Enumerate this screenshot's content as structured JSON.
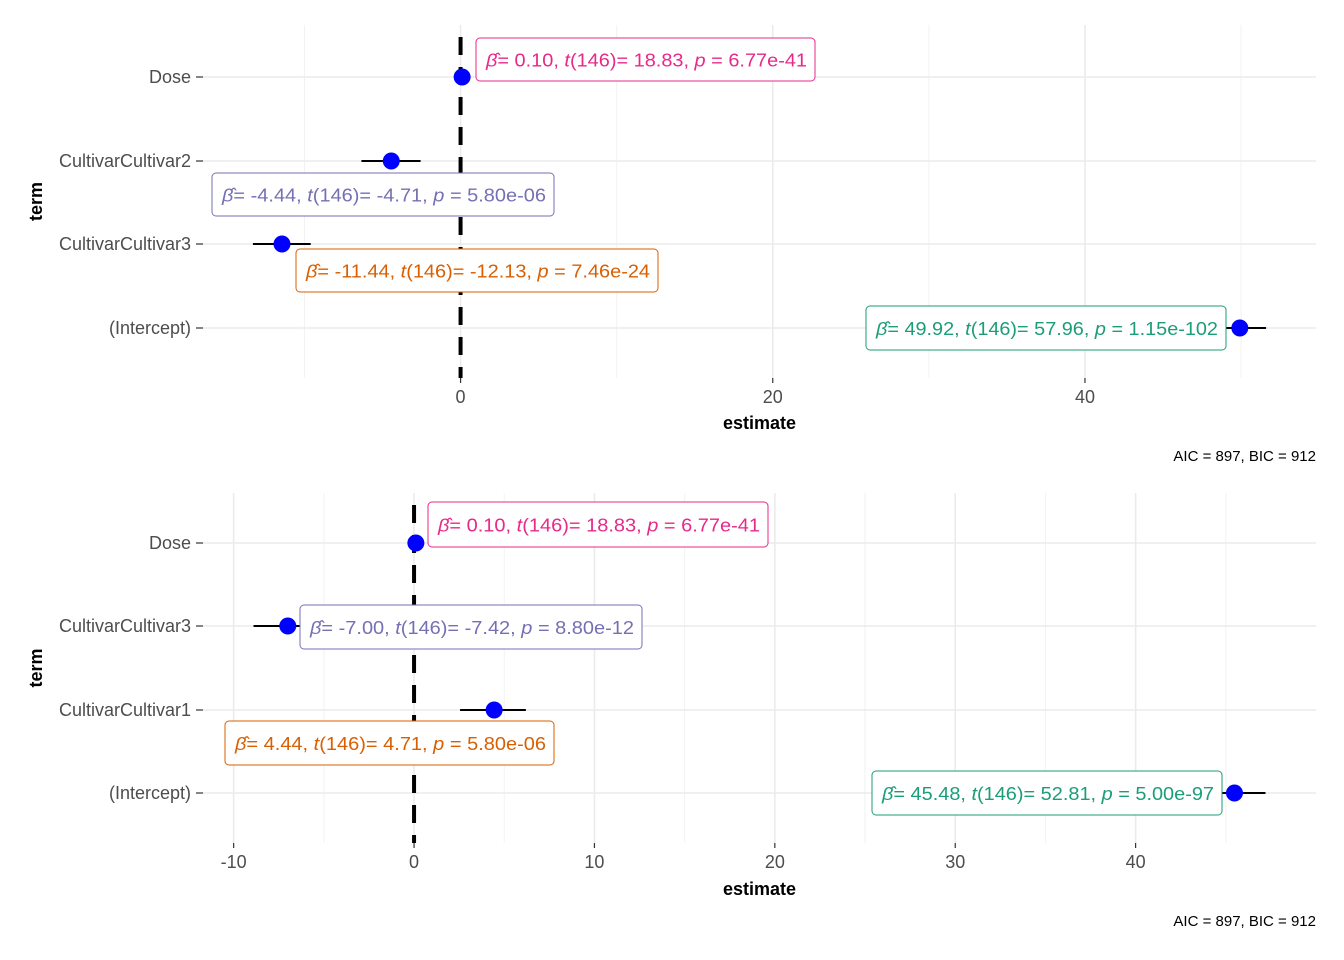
{
  "chart_data": [
    {
      "type": "scatter",
      "subtype": "coefficient-plot",
      "xlabel": "estimate",
      "ylabel": "term",
      "caption": "AIC = 897, BIC = 912",
      "xlim": [
        -16.5,
        54.8
      ],
      "xticks": [
        0,
        20,
        40
      ],
      "xtick_labels": [
        "0",
        "20",
        "40"
      ],
      "minor_xticks": [
        -10,
        10,
        30,
        50
      ],
      "reference_line": 0,
      "grid": true,
      "terms": [
        {
          "term": "Dose",
          "estimate": 0.1,
          "conf_low": 0.09,
          "conf_high": 0.11,
          "label": {
            "beta": "0.10",
            "df": "146",
            "t": "18.83",
            "p": "6.77e-41"
          },
          "color": "#e7298a"
        },
        {
          "term": "CultivarCultivar2",
          "estimate": -4.44,
          "conf_low": -6.35,
          "conf_high": -2.56,
          "label": {
            "beta": "-4.44",
            "df": "146",
            "t": "-4.71",
            "p": "5.80e-06"
          },
          "color": "#7570b3"
        },
        {
          "term": "CultivarCultivar3",
          "estimate": -11.44,
          "conf_low": -13.3,
          "conf_high": -9.6,
          "label": {
            "beta": "-11.44",
            "df": "146",
            "t": "-12.13",
            "p": "7.46e-24"
          },
          "color": "#d95f02"
        },
        {
          "term": "(Intercept)",
          "estimate": 49.92,
          "conf_low": 48.2,
          "conf_high": 51.6,
          "label": {
            "beta": "49.92",
            "df": "146",
            "t": "57.96",
            "p": "1.15e-102"
          },
          "color": "#1b9e77"
        }
      ]
    },
    {
      "type": "scatter",
      "subtype": "coefficient-plot",
      "xlabel": "estimate",
      "ylabel": "term",
      "caption": "AIC = 897, BIC = 912",
      "xlim": [
        -11.7,
        50.0
      ],
      "xticks": [
        -10,
        0,
        10,
        20,
        30,
        40
      ],
      "xtick_labels": [
        "-10",
        "0",
        "10",
        "20",
        "30",
        "40"
      ],
      "minor_xticks": [
        -5,
        5,
        15,
        25,
        35,
        45
      ],
      "reference_line": 0,
      "grid": true,
      "terms": [
        {
          "term": "Dose",
          "estimate": 0.1,
          "conf_low": 0.09,
          "conf_high": 0.11,
          "label": {
            "beta": "0.10",
            "df": "146",
            "t": "18.83",
            "p": "6.77e-41"
          },
          "color": "#e7298a"
        },
        {
          "term": "CultivarCultivar3",
          "estimate": -7.0,
          "conf_low": -8.9,
          "conf_high": -5.1,
          "label": {
            "beta": "-7.00",
            "df": "146",
            "t": "-7.42",
            "p": "8.80e-12"
          },
          "color": "#7570b3"
        },
        {
          "term": "CultivarCultivar1",
          "estimate": 4.44,
          "conf_low": 2.55,
          "conf_high": 6.2,
          "label": {
            "beta": "4.44",
            "df": "146",
            "t": "4.71",
            "p": "5.80e-06"
          },
          "color": "#d95f02"
        },
        {
          "term": "(Intercept)",
          "estimate": 45.48,
          "conf_low": 43.8,
          "conf_high": 47.2,
          "label": {
            "beta": "45.48",
            "df": "146",
            "t": "52.81",
            "p": "5.00e-97"
          },
          "color": "#1b9e77"
        }
      ]
    }
  ]
}
